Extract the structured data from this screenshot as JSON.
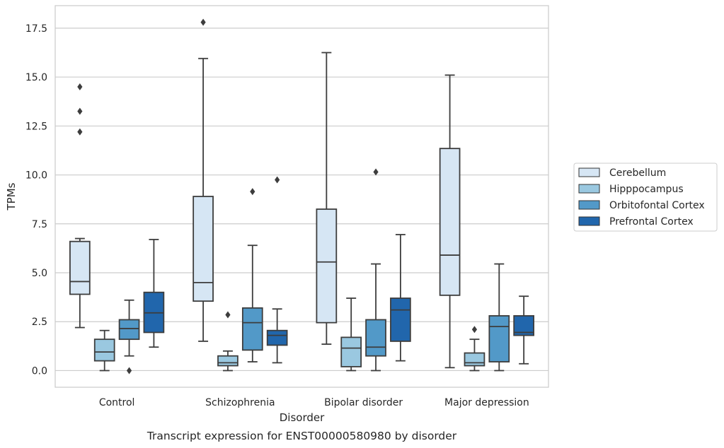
{
  "caption": "Transcript expression for ENST00000580980 by disorder",
  "chart_data": {
    "type": "box",
    "xlabel": "Disorder",
    "ylabel": "TPMs",
    "ylim": [
      -0.85,
      18.65
    ],
    "yticks": [
      0.0,
      2.5,
      5.0,
      7.5,
      10.0,
      12.5,
      15.0,
      17.5
    ],
    "ytick_labels": [
      "0.0",
      "2.5",
      "5.0",
      "7.5",
      "10.0",
      "12.5",
      "15.0",
      "17.5"
    ],
    "grid": "horizontal",
    "legend_placement": "center-right, outside plot",
    "categories": [
      "Control",
      "Schizophrenia",
      "Bipolar disorder",
      "Major depression"
    ],
    "series": [
      {
        "name": "Cerebellum",
        "color": "#d6e6f4",
        "boxes": [
          {
            "whislo": 2.2,
            "q1": 3.9,
            "med": 4.55,
            "q3": 6.6,
            "whishi": 6.75,
            "fliers": [
              12.2,
              13.25,
              14.5
            ]
          },
          {
            "whislo": 1.5,
            "q1": 3.55,
            "med": 4.5,
            "q3": 8.9,
            "whishi": 15.95,
            "fliers": [
              17.8
            ]
          },
          {
            "whislo": 1.35,
            "q1": 2.45,
            "med": 5.55,
            "q3": 8.25,
            "whishi": 16.25,
            "fliers": []
          },
          {
            "whislo": 0.15,
            "q1": 3.85,
            "med": 5.9,
            "q3": 11.35,
            "whishi": 15.1,
            "fliers": []
          }
        ]
      },
      {
        "name": "Hipppocampus",
        "color": "#9ac8e0",
        "boxes": [
          {
            "whislo": 0.0,
            "q1": 0.5,
            "med": 0.95,
            "q3": 1.6,
            "whishi": 2.05,
            "fliers": []
          },
          {
            "whislo": 0.0,
            "q1": 0.25,
            "med": 0.4,
            "q3": 0.75,
            "whishi": 1.0,
            "fliers": [
              2.85
            ]
          },
          {
            "whislo": 0.0,
            "q1": 0.2,
            "med": 1.15,
            "q3": 1.7,
            "whishi": 3.7,
            "fliers": []
          },
          {
            "whislo": 0.0,
            "q1": 0.25,
            "med": 0.4,
            "q3": 0.9,
            "whishi": 1.6,
            "fliers": [
              2.1
            ]
          }
        ]
      },
      {
        "name": "Orbitofontal Cortex",
        "color": "#5299c8",
        "boxes": [
          {
            "whislo": 0.75,
            "q1": 1.6,
            "med": 2.15,
            "q3": 2.6,
            "whishi": 3.6,
            "fliers": [
              0.0
            ]
          },
          {
            "whislo": 0.45,
            "q1": 1.05,
            "med": 2.45,
            "q3": 3.2,
            "whishi": 6.4,
            "fliers": [
              9.15
            ]
          },
          {
            "whislo": 0.0,
            "q1": 0.75,
            "med": 1.2,
            "q3": 2.6,
            "whishi": 5.45,
            "fliers": [
              10.15
            ]
          },
          {
            "whislo": 0.0,
            "q1": 0.45,
            "med": 2.25,
            "q3": 2.8,
            "whishi": 5.45,
            "fliers": []
          }
        ]
      },
      {
        "name": "Prefrontal Cortex",
        "color": "#2166ac",
        "boxes": [
          {
            "whislo": 1.2,
            "q1": 1.95,
            "med": 2.95,
            "q3": 4.0,
            "whishi": 6.7,
            "fliers": []
          },
          {
            "whislo": 0.4,
            "q1": 1.3,
            "med": 1.8,
            "q3": 2.05,
            "whishi": 3.15,
            "fliers": [
              9.75
            ]
          },
          {
            "whislo": 0.5,
            "q1": 1.5,
            "med": 3.1,
            "q3": 3.7,
            "whishi": 6.95,
            "fliers": []
          },
          {
            "whislo": 0.35,
            "q1": 1.8,
            "med": 1.95,
            "q3": 2.8,
            "whishi": 3.8,
            "fliers": []
          }
        ]
      }
    ]
  }
}
